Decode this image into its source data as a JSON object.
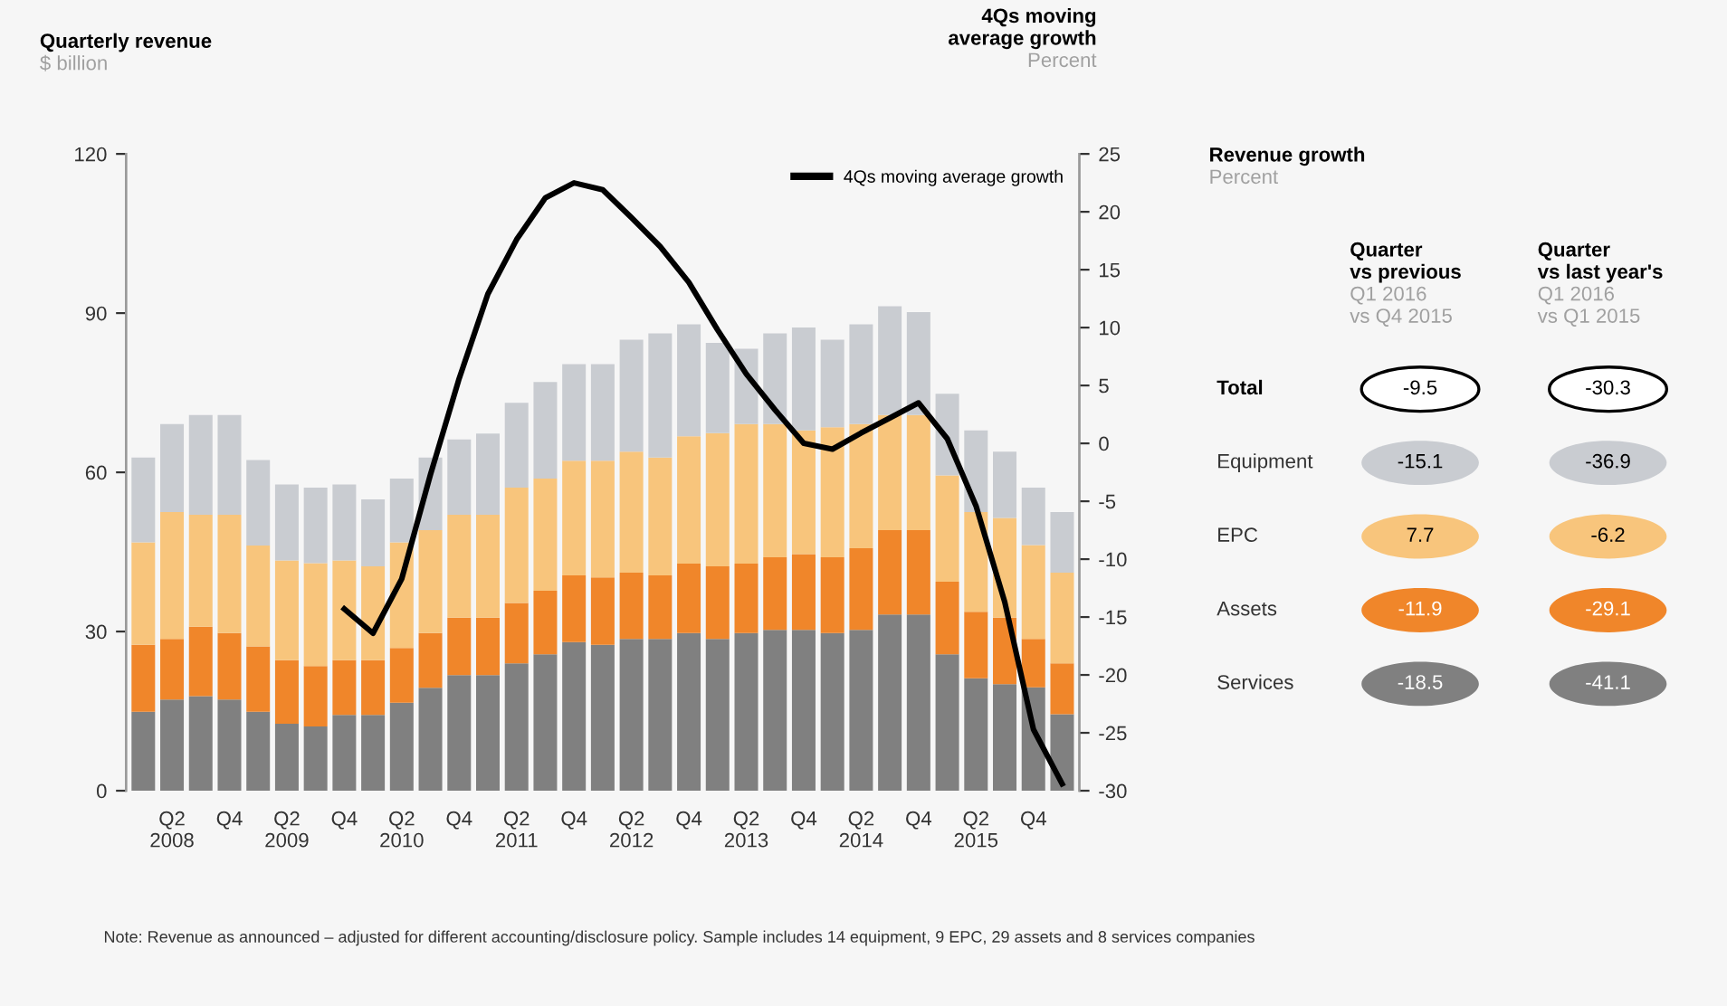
{
  "chart_data": [
    {
      "type": "bar",
      "stacked": true,
      "ylabel": "Quarterly revenue\n$ billion",
      "y2label": "4Qs moving\naverage growth\nPercent",
      "categories": [
        null,
        "Q2\n2008",
        null,
        "Q4",
        null,
        "Q2\n2009",
        null,
        "Q4",
        null,
        "Q2\n2010",
        null,
        "Q4",
        null,
        "Q2\n2011",
        null,
        "Q4",
        null,
        "Q2\n2012",
        null,
        "Q4",
        null,
        "Q2\n2013",
        null,
        "Q4",
        null,
        "Q2\n2014",
        null,
        "Q4",
        null,
        "Q2\n2015",
        null,
        "Q4",
        null
      ],
      "series": [
        {
          "color": "#808080",
          "values": [
            14.9,
            17.2,
            17.8,
            17.2,
            14.9,
            12.6,
            12.1,
            14.3,
            14.3,
            16.6,
            19.4,
            21.8,
            21.8,
            24.0,
            25.7,
            28.0,
            27.5,
            28.6,
            28.6,
            29.7,
            28.6,
            29.7,
            30.3,
            30.3,
            29.7,
            30.3,
            33.2,
            33.2,
            25.7,
            21.2,
            20.1,
            19.5,
            14.4
          ]
        },
        {
          "color": "#f0862a",
          "values": [
            12.6,
            11.4,
            13.1,
            12.5,
            12.3,
            12.0,
            11.4,
            10.3,
            10.3,
            10.3,
            10.3,
            10.8,
            10.8,
            11.4,
            12.0,
            12.6,
            12.7,
            12.5,
            12.0,
            13.1,
            13.7,
            13.1,
            13.7,
            14.3,
            14.3,
            15.4,
            15.9,
            15.9,
            13.7,
            12.5,
            12.5,
            9.1,
            9.6
          ]
        },
        {
          "color": "#f8c57c",
          "values": [
            19.3,
            23.9,
            21.1,
            22.3,
            19.0,
            18.8,
            19.4,
            18.8,
            17.7,
            19.9,
            19.4,
            19.4,
            19.4,
            21.7,
            21.1,
            21.6,
            22.0,
            22.8,
            22.2,
            24.0,
            25.1,
            26.3,
            25.1,
            23.3,
            24.5,
            23.4,
            21.7,
            21.7,
            20.0,
            18.8,
            18.8,
            17.7,
            17.1
          ]
        },
        {
          "color": "#c9ccd1",
          "values": [
            16.0,
            16.6,
            18.8,
            18.8,
            16.1,
            14.3,
            14.2,
            14.3,
            12.6,
            12.0,
            13.7,
            14.2,
            15.3,
            16.0,
            18.2,
            18.2,
            18.2,
            21.1,
            23.4,
            21.1,
            17.0,
            14.2,
            17.1,
            19.4,
            16.5,
            18.8,
            20.5,
            19.4,
            15.4,
            15.4,
            12.5,
            10.8,
            11.4
          ]
        },
        {
          "type": "line",
          "axis": "y2",
          "name": "4Qs moving average growth",
          "color": "#000000",
          "values": [
            null,
            null,
            null,
            null,
            null,
            null,
            null,
            -14.3,
            -16.4,
            -11.7,
            -2.7,
            5.6,
            12.9,
            17.6,
            21.2,
            22.5,
            21.9,
            19.5,
            17.0,
            13.9,
            9.8,
            6.0,
            2.9,
            0.0,
            -0.5,
            0.9,
            2.2,
            3.5,
            0.4,
            -5.4,
            -13.7,
            -24.7,
            -29.4
          ]
        }
      ],
      "ylim": [
        0,
        120
      ],
      "yticks": [
        0,
        30,
        60,
        90,
        120
      ],
      "y2lim": [
        -30,
        25
      ],
      "y2ticks": [
        -30,
        -25,
        -20,
        -15,
        -10,
        -5,
        0,
        5,
        10,
        15,
        20,
        25
      ],
      "grid": false,
      "legend": "top right",
      "line_style": "solid",
      "marker": "none",
      "annotations": [
        "Note: Revenue as announced – adjusted for different accounting/disclosure policy. Sample includes 14 equipment, 9 EPC, 29 assets and 8 services companies"
      ]
    },
    {
      "type": "other",
      "title": "Revenue growth\nPercent",
      "categories": [
        "Quarter\nvs previous\nQ1 2016\nvs Q4 2015",
        "Quarter\nvs last year's\nQ1 2016\nvs Q1 2015"
      ],
      "y_categories": [
        "Total",
        "Equipment",
        "EPC",
        "Assets",
        "Services"
      ],
      "cell_labels": [
        [
          "-9.5",
          "-30.3"
        ],
        [
          "-15.1",
          "-36.9"
        ],
        [
          "7.7",
          "-6.2"
        ],
        [
          "-11.9",
          "-29.1"
        ],
        [
          "-18.5",
          "-41.1"
        ]
      ],
      "colors": [
        "#ffffff",
        "#c9ccd1",
        "#f8c57c",
        "#f0862a",
        "#808080"
      ]
    }
  ]
}
